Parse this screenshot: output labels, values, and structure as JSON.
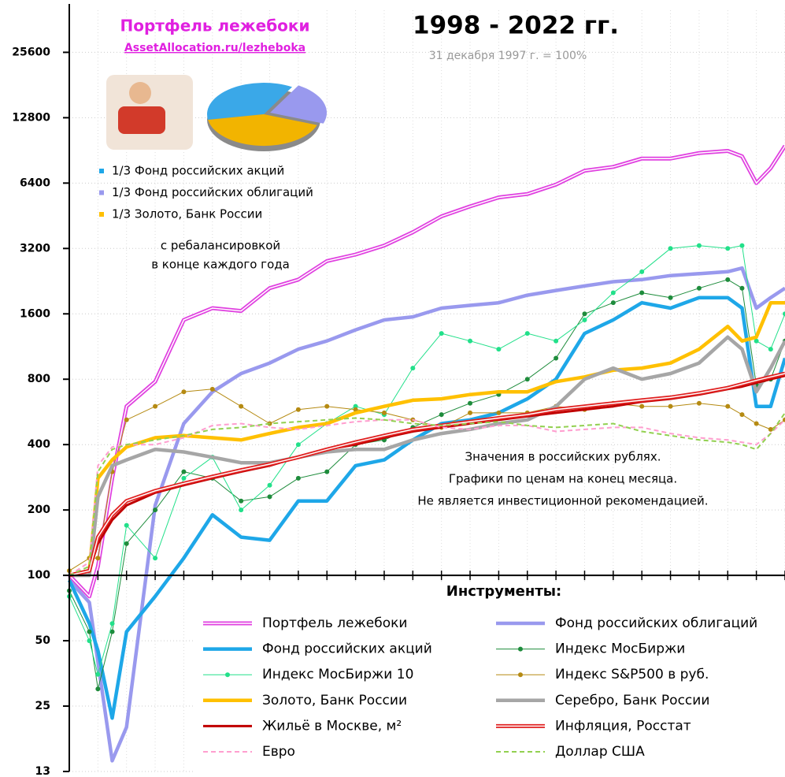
{
  "chart_data": {
    "type": "line",
    "title": "1998 - 2022 гг.",
    "subtitle": "31 декабря 1997 г. = 100%",
    "notes": [
      "Значения в российских рублях.",
      "Графики по ценам на конец месяца.",
      "Не является инвестиционной рекомендацией."
    ],
    "legend_title": "Инструменты:",
    "inset": {
      "title": "Портфель лежебоки",
      "link": "AssetAllocation.ru/lezheboka",
      "items": [
        {
          "label": "1/3 Фонд российских акций",
          "color": "#1ea7e8"
        },
        {
          "label": "1/3 Фонд российских облигаций",
          "color": "#9999ee"
        },
        {
          "label": "1/3 Золото, Банк России",
          "color": "#ffc000"
        }
      ],
      "notes": [
        "с ребалансировкой",
        "в конце каждого года"
      ]
    },
    "yscale": "log",
    "grid": true,
    "xaxis_crosses": 100,
    "xlim": [
      1998,
      2023
    ],
    "ylim": [
      12.5,
      40000
    ],
    "yticks": [
      {
        "value": 12.5,
        "label": "13"
      },
      25,
      50,
      100,
      200,
      400,
      800,
      1600,
      3200,
      6400,
      12800,
      25600
    ],
    "x": [
      1998,
      1998.7,
      1999,
      1999.5,
      2000,
      2001,
      2002,
      2003,
      2004,
      2005,
      2006,
      2007,
      2008,
      2009,
      2010,
      2011,
      2012,
      2013,
      2014,
      2015,
      2016,
      2017,
      2018,
      2019,
      2020,
      2021,
      2021.5,
      2022,
      2022.5,
      2023
    ],
    "series": [
      {
        "name": "Портфель лежебоки",
        "color": "#e040e0",
        "linestyle": "double",
        "marker": false,
        "values": [
          100,
          80,
          110,
          280,
          600,
          780,
          1500,
          1700,
          1650,
          2100,
          2300,
          2800,
          3000,
          3300,
          3800,
          4500,
          5000,
          5500,
          5700,
          6300,
          7300,
          7600,
          8300,
          8300,
          8800,
          9000,
          8500,
          6400,
          7500,
          9500
        ]
      },
      {
        "name": "Фонд российских облигаций",
        "color": "#9999ee",
        "linestyle": "solid",
        "marker": false,
        "values": [
          95,
          75,
          40,
          14,
          20,
          210,
          500,
          700,
          850,
          950,
          1100,
          1200,
          1350,
          1500,
          1550,
          1700,
          1750,
          1800,
          1950,
          2050,
          2150,
          2250,
          2300,
          2400,
          2450,
          2500,
          2600,
          1700,
          1900,
          2100
        ]
      },
      {
        "name": "Фонд российских акций",
        "color": "#1ea7e8",
        "linestyle": "solid",
        "marker": false,
        "values": [
          95,
          60,
          45,
          22,
          55,
          80,
          120,
          190,
          150,
          145,
          220,
          220,
          320,
          340,
          420,
          500,
          520,
          560,
          650,
          800,
          1300,
          1500,
          1800,
          1700,
          1900,
          1900,
          1700,
          600,
          600,
          1000
        ]
      },
      {
        "name": "Индекс МосБиржи",
        "color": "#1e8c3c",
        "linestyle": "thin",
        "marker": true,
        "values": [
          85,
          55,
          30,
          55,
          140,
          200,
          300,
          280,
          220,
          230,
          280,
          300,
          400,
          420,
          480,
          550,
          620,
          680,
          800,
          1000,
          1600,
          1800,
          2000,
          1900,
          2100,
          2300,
          2100,
          750,
          800,
          1200
        ]
      },
      {
        "name": "Индекс МосБиржи 10",
        "color": "#22e08a",
        "linestyle": "thin",
        "marker": true,
        "values": [
          80,
          50,
          35,
          60,
          170,
          120,
          280,
          350,
          200,
          260,
          400,
          500,
          600,
          550,
          900,
          1300,
          1200,
          1100,
          1300,
          1200,
          1500,
          2000,
          2500,
          3200,
          3300,
          3200,
          3300,
          1200,
          1100,
          1600
        ]
      },
      {
        "name": "Индекс S&P500 в руб.",
        "color": "#b58a12",
        "linestyle": "thin",
        "marker": true,
        "values": [
          105,
          120,
          120,
          300,
          520,
          600,
          700,
          720,
          600,
          500,
          580,
          600,
          580,
          560,
          520,
          480,
          560,
          560,
          560,
          600,
          580,
          620,
          600,
          600,
          620,
          600,
          550,
          500,
          470,
          520
        ]
      },
      {
        "name": "Золото, Банк России",
        "color": "#ffc000",
        "linestyle": "solid",
        "marker": false,
        "values": [
          100,
          105,
          280,
          340,
          390,
          430,
          440,
          430,
          420,
          450,
          480,
          500,
          560,
          600,
          640,
          650,
          680,
          700,
          700,
          780,
          820,
          880,
          900,
          950,
          1100,
          1400,
          1200,
          1250,
          1800,
          1800
        ]
      },
      {
        "name": "Серебро, Банк России",
        "color": "#a6a6a6",
        "linestyle": "solid",
        "marker": false,
        "values": [
          100,
          100,
          230,
          320,
          340,
          380,
          370,
          350,
          330,
          330,
          350,
          370,
          380,
          380,
          420,
          450,
          470,
          500,
          520,
          600,
          800,
          900,
          800,
          850,
          950,
          1250,
          1100,
          700,
          900,
          1200
        ]
      },
      {
        "name": "Жильё в Москве, м²",
        "color": "#c00000",
        "linestyle": "medium",
        "marker": false,
        "values": [
          100,
          105,
          140,
          180,
          210,
          240,
          260,
          280,
          300,
          320,
          350,
          380,
          400,
          430,
          460,
          480,
          500,
          520,
          540,
          560,
          580,
          600,
          630,
          650,
          680,
          720,
          740,
          770,
          800,
          830
        ]
      },
      {
        "name": "Инфляция, Росстат",
        "color": "#e02020",
        "linestyle": "double",
        "marker": false,
        "values": [
          100,
          105,
          150,
          190,
          220,
          245,
          265,
          285,
          305,
          325,
          350,
          380,
          410,
          440,
          470,
          490,
          510,
          530,
          550,
          580,
          600,
          620,
          640,
          660,
          690,
          730,
          760,
          790,
          820,
          850
        ]
      },
      {
        "name": "Евро",
        "color": "#ff9ecf",
        "linestyle": "dashed",
        "marker": false,
        "values": [
          100,
          115,
          320,
          390,
          400,
          400,
          430,
          490,
          500,
          480,
          470,
          490,
          510,
          520,
          520,
          480,
          470,
          490,
          490,
          460,
          470,
          480,
          480,
          450,
          430,
          420,
          410,
          400,
          450,
          520
        ]
      },
      {
        "name": "Доллар США",
        "color": "#92d050",
        "linestyle": "dashed",
        "marker": false,
        "values": [
          100,
          110,
          300,
          380,
          400,
          420,
          440,
          470,
          480,
          500,
          510,
          520,
          530,
          520,
          500,
          490,
          500,
          510,
          490,
          480,
          490,
          500,
          460,
          440,
          420,
          410,
          400,
          380,
          450,
          560
        ]
      }
    ]
  }
}
